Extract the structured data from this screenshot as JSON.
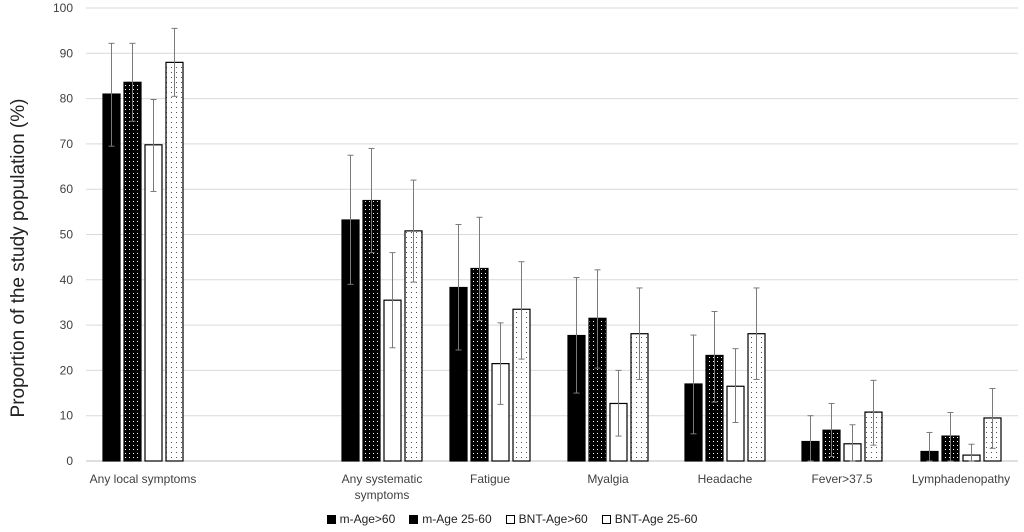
{
  "chart_data": {
    "type": "bar",
    "ylabel": "Proportion of the study population (%)",
    "ylim": [
      0,
      100
    ],
    "yticks": [
      0,
      10,
      20,
      30,
      40,
      50,
      60,
      70,
      80,
      90,
      100
    ],
    "grid": true,
    "legend_position": "bottom",
    "categories": [
      [
        "Any local symptoms"
      ],
      [
        "Any systematic",
        "symptoms"
      ],
      [
        "Fatigue"
      ],
      [
        "Myalgia"
      ],
      [
        "Headache"
      ],
      [
        "Fever>37.5"
      ],
      [
        "Lymphadenopathy"
      ]
    ],
    "series": [
      {
        "name": "m-Age>60",
        "fill": "solid-black",
        "values": [
          81,
          53.2,
          38.3,
          27.7,
          17,
          4.3,
          2.1
        ],
        "errors": [
          [
            69.5,
            92.2
          ],
          [
            39,
            67.5
          ],
          [
            24.5,
            52.2
          ],
          [
            15,
            40.5
          ],
          [
            6,
            27.8
          ],
          [
            0,
            10
          ],
          [
            0,
            6.3
          ]
        ]
      },
      {
        "name": "m-Age 25-60",
        "fill": "black-dotted",
        "values": [
          83.6,
          57.5,
          42.5,
          31.5,
          23.3,
          6.8,
          5.5
        ],
        "errors": [
          [
            75,
            92.2
          ],
          [
            46,
            69
          ],
          [
            31,
            53.8
          ],
          [
            20.5,
            42.2
          ],
          [
            13,
            33
          ],
          [
            1,
            12.7
          ],
          [
            0,
            10.7
          ]
        ]
      },
      {
        "name": "BNT-Age>60",
        "fill": "white",
        "values": [
          69.8,
          35.5,
          21.5,
          12.7,
          16.5,
          3.8,
          1.3
        ],
        "errors": [
          [
            59.5,
            79.8
          ],
          [
            25,
            46
          ],
          [
            12.5,
            30.5
          ],
          [
            5.5,
            20
          ],
          [
            8.5,
            24.8
          ],
          [
            0,
            8
          ],
          [
            0,
            3.7
          ]
        ]
      },
      {
        "name": "BNT-Age 25-60",
        "fill": "white-dotted",
        "values": [
          88,
          50.8,
          33.5,
          28.1,
          28.1,
          10.8,
          9.5
        ],
        "errors": [
          [
            80.5,
            95.5
          ],
          [
            39.5,
            62
          ],
          [
            22.5,
            44
          ],
          [
            18,
            38.2
          ],
          [
            18,
            38.2
          ],
          [
            3.5,
            17.8
          ],
          [
            2.8,
            16
          ]
        ]
      }
    ]
  }
}
